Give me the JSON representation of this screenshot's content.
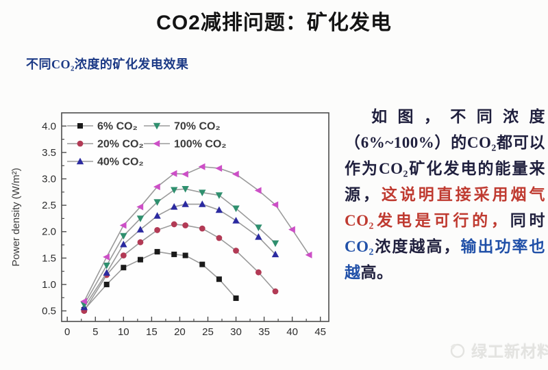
{
  "slide": {
    "title": "CO2减排问题：矿化发电",
    "subtitle": "不同CO₂浓度的矿化发电效果",
    "watermark": "绿工新材料"
  },
  "paragraph": {
    "segments": [
      {
        "text": "如图，不同浓度（6%~100%）的CO₂都可以作为CO₂矿化发电的能量来源，",
        "color": "#20203e"
      },
      {
        "text": "这说明直接采用烟气CO₂发电是可行的，",
        "color": "#bf3a30"
      },
      {
        "text": "同时",
        "color": "#20203e"
      },
      {
        "text": "CO₂",
        "color": "#2050a8"
      },
      {
        "text": "浓度越高，",
        "color": "#20203e"
      },
      {
        "text": "输出功率也越",
        "color": "#2050a8"
      },
      {
        "text": "高。",
        "color": "#20203e"
      }
    ]
  },
  "chart_data": {
    "type": "line",
    "title": "",
    "xlabel": "",
    "ylabel": "Power density (W/m²)",
    "xlim": [
      -1,
      46.5
    ],
    "ylim": [
      0.3,
      4.25
    ],
    "x_ticks": [
      0,
      5,
      10,
      15,
      20,
      25,
      30,
      35,
      40,
      45
    ],
    "y_ticks": [
      0.5,
      1.0,
      1.5,
      2.0,
      2.5,
      3.0,
      3.5,
      4.0
    ],
    "grid": false,
    "legend_position": "top-left",
    "line_color": "#9a9a9a",
    "series": [
      {
        "name": "6% CO₂",
        "marker": "square",
        "color": "#1a1a1a",
        "points": [
          [
            3,
            0.52
          ],
          [
            7,
            1.0
          ],
          [
            10,
            1.32
          ],
          [
            13,
            1.47
          ],
          [
            16,
            1.62
          ],
          [
            19,
            1.57
          ],
          [
            21,
            1.55
          ],
          [
            24,
            1.38
          ],
          [
            27,
            1.1
          ],
          [
            30,
            0.74
          ]
        ]
      },
      {
        "name": "20% CO₂",
        "marker": "circle",
        "color": "#b23a55",
        "points": [
          [
            3,
            0.5
          ],
          [
            7,
            1.18
          ],
          [
            10,
            1.55
          ],
          [
            13,
            1.8
          ],
          [
            16,
            2.03
          ],
          [
            19,
            2.14
          ],
          [
            21,
            2.12
          ],
          [
            24,
            2.06
          ],
          [
            27,
            1.88
          ],
          [
            30,
            1.64
          ],
          [
            34,
            1.23
          ],
          [
            37,
            0.87
          ]
        ]
      },
      {
        "name": "40% CO₂",
        "marker": "triangle-up",
        "color": "#2b2aa0",
        "points": [
          [
            3,
            0.57
          ],
          [
            7,
            1.22
          ],
          [
            10,
            1.76
          ],
          [
            13,
            2.04
          ],
          [
            16,
            2.3
          ],
          [
            19,
            2.47
          ],
          [
            21,
            2.52
          ],
          [
            24,
            2.52
          ],
          [
            27,
            2.41
          ],
          [
            30,
            2.21
          ],
          [
            34,
            1.9
          ],
          [
            37,
            1.57
          ]
        ]
      },
      {
        "name": "70% CO₂",
        "marker": "triangle-down",
        "color": "#2f8f6e",
        "points": [
          [
            3,
            0.62
          ],
          [
            7,
            1.36
          ],
          [
            10,
            1.92
          ],
          [
            13,
            2.25
          ],
          [
            16,
            2.56
          ],
          [
            19,
            2.79
          ],
          [
            21,
            2.81
          ],
          [
            24,
            2.74
          ],
          [
            27,
            2.69
          ],
          [
            30,
            2.44
          ],
          [
            34,
            2.08
          ],
          [
            37,
            1.78
          ]
        ]
      },
      {
        "name": "100% CO₂",
        "marker": "triangle-left",
        "color": "#cc4fc6",
        "points": [
          [
            3,
            0.68
          ],
          [
            7,
            1.52
          ],
          [
            10,
            2.12
          ],
          [
            13,
            2.47
          ],
          [
            16,
            2.85
          ],
          [
            19,
            3.1
          ],
          [
            21,
            3.09
          ],
          [
            24,
            3.23
          ],
          [
            27,
            3.2
          ],
          [
            30,
            3.09
          ],
          [
            34,
            2.78
          ],
          [
            37,
            2.51
          ],
          [
            40,
            2.04
          ],
          [
            43,
            1.56
          ]
        ]
      }
    ]
  }
}
